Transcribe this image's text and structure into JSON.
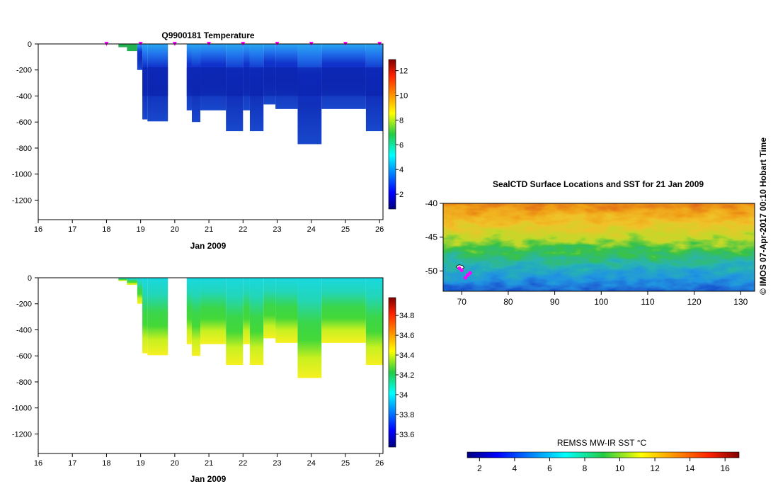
{
  "chart_data": [
    {
      "type": "heatmap",
      "title": "Q9900181  Temperature",
      "xlabel": "Jan 2009",
      "x_ticks": [
        "16",
        "17",
        "18",
        "19",
        "20",
        "21",
        "22",
        "23",
        "24",
        "25",
        "26"
      ],
      "xlim": [
        16,
        26.1
      ],
      "y_ticks": [
        "0",
        "-200",
        "-400",
        "-600",
        "-800",
        "-1000",
        "-1200"
      ],
      "ylim": [
        -1350,
        0
      ],
      "colorbar": {
        "ticks": [
          "2",
          "4",
          "6",
          "8",
          "10",
          "12"
        ],
        "range": [
          0.8,
          12.9
        ]
      },
      "profile_markers_x": [
        18.0,
        19.0,
        20.0,
        21.0,
        22.0,
        23.0,
        24.0,
        25.0,
        26.0
      ],
      "profiles": [
        {
          "x0": 18.35,
          "x1": 18.6,
          "depth": -25
        },
        {
          "x0": 18.6,
          "x1": 18.9,
          "depth": -55
        },
        {
          "x0": 18.9,
          "x1": 19.05,
          "depth": -200
        },
        {
          "x0": 19.05,
          "x1": 19.2,
          "depth": -580
        },
        {
          "x0": 19.2,
          "x1": 19.8,
          "depth": -595
        },
        {
          "x0": 20.35,
          "x1": 20.5,
          "depth": -510
        },
        {
          "x0": 20.5,
          "x1": 20.75,
          "depth": -600
        },
        {
          "x0": 20.75,
          "x1": 21.5,
          "depth": -510
        },
        {
          "x0": 21.5,
          "x1": 22.0,
          "depth": -670
        },
        {
          "x0": 22.0,
          "x1": 22.2,
          "depth": -510
        },
        {
          "x0": 22.2,
          "x1": 22.6,
          "depth": -670
        },
        {
          "x0": 22.6,
          "x1": 22.95,
          "depth": -465
        },
        {
          "x0": 22.95,
          "x1": 23.6,
          "depth": -500
        },
        {
          "x0": 23.6,
          "x1": 24.3,
          "depth": -770
        },
        {
          "x0": 24.3,
          "x1": 25.6,
          "depth": -500
        },
        {
          "x0": 25.6,
          "x1": 26.1,
          "depth": -670
        }
      ]
    },
    {
      "type": "heatmap",
      "title": "",
      "xlabel": "Jan 2009",
      "x_ticks": [
        "16",
        "17",
        "18",
        "19",
        "20",
        "21",
        "22",
        "23",
        "24",
        "25",
        "26"
      ],
      "xlim": [
        16,
        26.1
      ],
      "y_ticks": [
        "0",
        "-200",
        "-400",
        "-600",
        "-800",
        "-1000",
        "-1200"
      ],
      "ylim": [
        -1350,
        0
      ],
      "colorbar": {
        "ticks": [
          "33.6",
          "33.8",
          "34",
          "34.2",
          "34.4",
          "34.6",
          "34.8"
        ],
        "range": [
          33.47,
          34.98
        ]
      },
      "profiles": [
        {
          "x0": 18.35,
          "x1": 18.6,
          "depth": -25
        },
        {
          "x0": 18.6,
          "x1": 18.9,
          "depth": -55
        },
        {
          "x0": 18.9,
          "x1": 19.05,
          "depth": -200
        },
        {
          "x0": 19.05,
          "x1": 19.2,
          "depth": -580
        },
        {
          "x0": 19.2,
          "x1": 19.8,
          "depth": -595
        },
        {
          "x0": 20.35,
          "x1": 20.5,
          "depth": -510
        },
        {
          "x0": 20.5,
          "x1": 20.75,
          "depth": -600
        },
        {
          "x0": 20.75,
          "x1": 21.5,
          "depth": -510
        },
        {
          "x0": 21.5,
          "x1": 22.0,
          "depth": -670
        },
        {
          "x0": 22.0,
          "x1": 22.2,
          "depth": -510
        },
        {
          "x0": 22.2,
          "x1": 22.6,
          "depth": -670
        },
        {
          "x0": 22.6,
          "x1": 22.95,
          "depth": -465
        },
        {
          "x0": 22.95,
          "x1": 23.6,
          "depth": -500
        },
        {
          "x0": 23.6,
          "x1": 24.3,
          "depth": -770
        },
        {
          "x0": 24.3,
          "x1": 25.6,
          "depth": -500
        },
        {
          "x0": 25.6,
          "x1": 26.1,
          "depth": -670
        }
      ]
    },
    {
      "type": "heatmap",
      "title": "SealCTD Surface Locations and SST for 21 Jan 2009",
      "x_ticks": [
        "70",
        "80",
        "90",
        "100",
        "110",
        "120",
        "130"
      ],
      "xlim": [
        66,
        133
      ],
      "y_ticks": [
        "-40",
        "-45",
        "-50"
      ],
      "ylim": [
        -53,
        -40
      ],
      "colorbar": {
        "label": "REMSS MW-IR SST °C",
        "ticks": [
          "2",
          "4",
          "6",
          "8",
          "10",
          "12",
          "14",
          "16"
        ],
        "range": [
          1.3,
          16.8
        ]
      },
      "seal_locations": [
        [
          69.5,
          -49.6
        ],
        [
          70.0,
          -49.9
        ],
        [
          70.8,
          -51.0
        ],
        [
          71.3,
          -50.6
        ],
        [
          71.8,
          -50.3
        ]
      ]
    }
  ],
  "side_note": "©  IMOS 07-Apr-2017 00:10 Hobart Time"
}
